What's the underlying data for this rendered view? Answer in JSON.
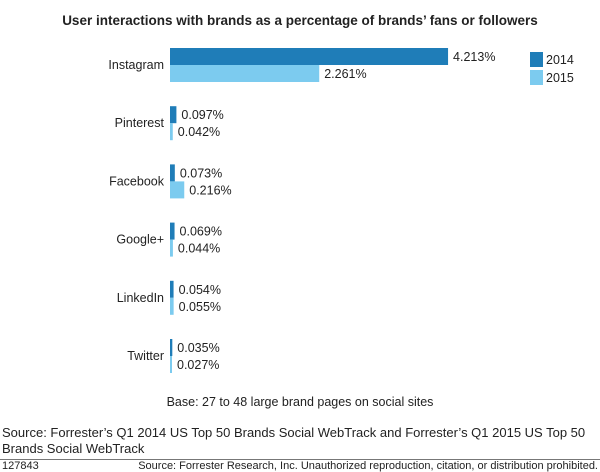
{
  "chart_data": {
    "type": "bar",
    "orientation": "horizontal",
    "title": "User interactions with brands as a percentage of brands’ fans or followers",
    "categories": [
      "Instagram",
      "Pinterest",
      "Facebook",
      "Google+",
      "LinkedIn",
      "Twitter"
    ],
    "series": [
      {
        "name": "2014",
        "color": "#1f7db8",
        "values": [
          4.213,
          0.097,
          0.073,
          0.069,
          0.054,
          0.035
        ],
        "labels": [
          "4.213%",
          "0.097%",
          "0.073%",
          "0.069%",
          "0.054%",
          "0.035%"
        ]
      },
      {
        "name": "2015",
        "color": "#7ccbef",
        "values": [
          2.261,
          0.042,
          0.216,
          0.044,
          0.055,
          0.027
        ],
        "labels": [
          "2.261%",
          "0.042%",
          "0.216%",
          "0.044%",
          "0.055%",
          "0.027%"
        ]
      }
    ],
    "unit": "%",
    "legend": "top-right",
    "grid": false,
    "note": "Base: 27 to 48 large brand pages on social sites"
  },
  "source": "Source: Forrester’s Q1 2014 US Top 50 Brands Social WebTrack and Forrester’s Q1 2015 US Top 50 Brands Social WebTrack",
  "figure_id": "127843",
  "copyright": "Source: Forrester Research, Inc. Unauthorized reproduction, citation, or distribution prohibited."
}
